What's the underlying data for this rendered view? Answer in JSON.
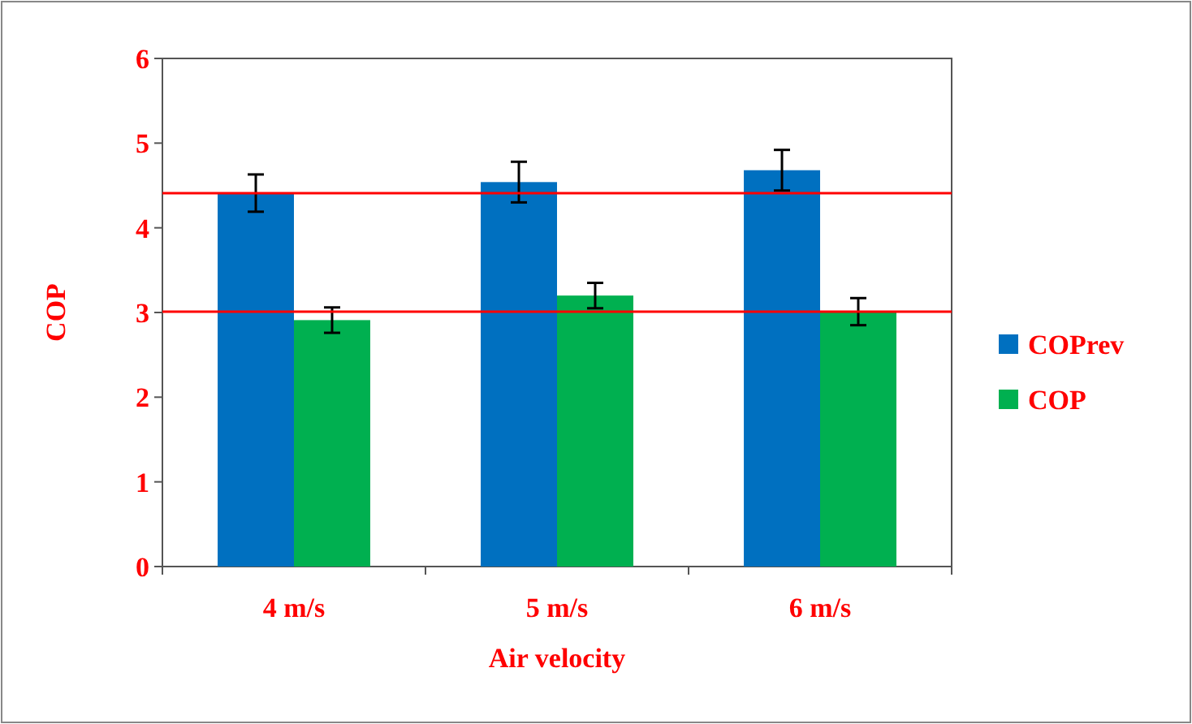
{
  "chart_data": {
    "type": "bar",
    "xlabel": "Air velocity",
    "ylabel": "COP",
    "categories": [
      "4 m/s",
      "5 m/s",
      "6 m/s"
    ],
    "series": [
      {
        "name": "COPrev",
        "color": "#0070c0",
        "values": [
          4.41,
          4.54,
          4.68
        ],
        "errors": [
          0.22,
          0.24,
          0.24
        ]
      },
      {
        "name": "COP",
        "color": "#00b050",
        "values": [
          2.91,
          3.2,
          3.01
        ],
        "errors": [
          0.15,
          0.15,
          0.16
        ]
      }
    ],
    "ylim": [
      0,
      6
    ],
    "yticks": [
      0,
      1,
      2,
      3,
      4,
      5,
      6
    ],
    "grid": false,
    "legend": "right",
    "ref_lines": [
      {
        "axis": "y",
        "value": 4.41,
        "color": "#ff0000"
      },
      {
        "axis": "y",
        "value": 3.01,
        "color": "#ff0000"
      }
    ]
  }
}
